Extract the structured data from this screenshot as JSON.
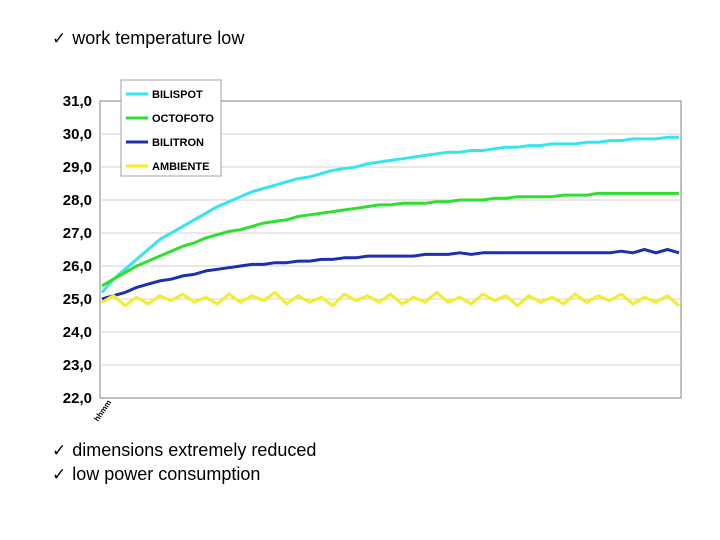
{
  "bullets": [
    {
      "check": "✓",
      "text": "work temperature low"
    },
    {
      "check": "✓",
      "text": "dimensions extremely reduced"
    },
    {
      "check": "✓",
      "text": "low power consumption"
    }
  ],
  "chart_data": {
    "type": "line",
    "title": "",
    "xlabel": "",
    "ylabel": "",
    "ylim": [
      22.0,
      31.0
    ],
    "yticks": [
      "31,0",
      "30,0",
      "29,0",
      "28,0",
      "27,0",
      "26,0",
      "25,0",
      "24,0",
      "23,0",
      "22,0"
    ],
    "x_tick_label": "hhmm",
    "grid": true,
    "legend_position": "top-left",
    "series": [
      {
        "name": "BILISPOT",
        "color": "#33e6ee",
        "values": [
          25.2,
          25.6,
          25.9,
          26.2,
          26.5,
          26.8,
          27.0,
          27.2,
          27.4,
          27.6,
          27.8,
          27.95,
          28.1,
          28.25,
          28.35,
          28.45,
          28.55,
          28.65,
          28.7,
          28.8,
          28.9,
          28.95,
          29.0,
          29.1,
          29.15,
          29.2,
          29.25,
          29.3,
          29.35,
          29.4,
          29.45,
          29.45,
          29.5,
          29.5,
          29.55,
          29.6,
          29.6,
          29.65,
          29.65,
          29.7,
          29.7,
          29.7,
          29.75,
          29.75,
          29.8,
          29.8,
          29.85,
          29.85,
          29.85,
          29.9,
          29.9
        ]
      },
      {
        "name": "OCTOFOTO",
        "color": "#2ee02e",
        "values": [
          25.4,
          25.6,
          25.8,
          26.0,
          26.15,
          26.3,
          26.45,
          26.6,
          26.7,
          26.85,
          26.95,
          27.05,
          27.1,
          27.2,
          27.3,
          27.35,
          27.4,
          27.5,
          27.55,
          27.6,
          27.65,
          27.7,
          27.75,
          27.8,
          27.85,
          27.85,
          27.9,
          27.9,
          27.9,
          27.95,
          27.95,
          28.0,
          28.0,
          28.0,
          28.05,
          28.05,
          28.1,
          28.1,
          28.1,
          28.1,
          28.15,
          28.15,
          28.15,
          28.2,
          28.2,
          28.2,
          28.2,
          28.2,
          28.2,
          28.2,
          28.2
        ]
      },
      {
        "name": "BILITRON",
        "color": "#1c2fb0",
        "values": [
          25.0,
          25.1,
          25.2,
          25.35,
          25.45,
          25.55,
          25.6,
          25.7,
          25.75,
          25.85,
          25.9,
          25.95,
          26.0,
          26.05,
          26.05,
          26.1,
          26.1,
          26.15,
          26.15,
          26.2,
          26.2,
          26.25,
          26.25,
          26.3,
          26.3,
          26.3,
          26.3,
          26.3,
          26.35,
          26.35,
          26.35,
          26.4,
          26.35,
          26.4,
          26.4,
          26.4,
          26.4,
          26.4,
          26.4,
          26.4,
          26.4,
          26.4,
          26.4,
          26.4,
          26.4,
          26.45,
          26.4,
          26.5,
          26.4,
          26.5,
          26.4
        ]
      },
      {
        "name": "AMBIENTE",
        "color": "#f2ee2a",
        "values": [
          24.9,
          25.1,
          24.8,
          25.05,
          24.85,
          25.1,
          24.95,
          25.15,
          24.9,
          25.05,
          24.85,
          25.15,
          24.9,
          25.1,
          24.95,
          25.2,
          24.85,
          25.1,
          24.9,
          25.05,
          24.8,
          25.15,
          24.95,
          25.1,
          24.9,
          25.15,
          24.85,
          25.05,
          24.9,
          25.2,
          24.9,
          25.05,
          24.85,
          25.15,
          24.95,
          25.1,
          24.8,
          25.1,
          24.9,
          25.05,
          24.85,
          25.15,
          24.9,
          25.1,
          24.95,
          25.15,
          24.85,
          25.05,
          24.9,
          25.1,
          24.8
        ]
      }
    ]
  }
}
